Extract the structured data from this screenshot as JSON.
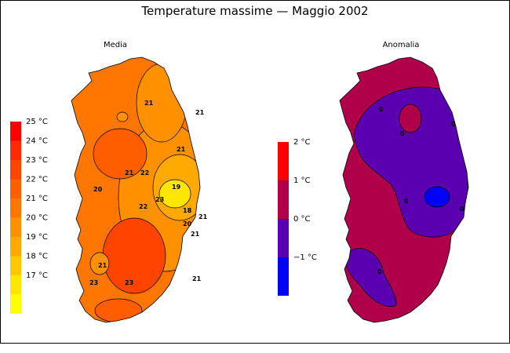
{
  "title": "Temperature massime — Maggio 2002",
  "panels": {
    "left": {
      "label": "Media",
      "legend": [
        {
          "label": "25 °C",
          "color": "#ff0000"
        },
        {
          "label": "24 °C",
          "color": "#ff2a00"
        },
        {
          "label": "23 °C",
          "color": "#ff4400"
        },
        {
          "label": "22 °C",
          "color": "#ff5e00"
        },
        {
          "label": "21 °C",
          "color": "#ff7700"
        },
        {
          "label": "20 °C",
          "color": "#ff9100"
        },
        {
          "label": "19 °C",
          "color": "#ffaa00"
        },
        {
          "label": "18 °C",
          "color": "#ffc800"
        },
        {
          "label": "17 °C",
          "color": "#ffe600"
        },
        {
          "label": "",
          "color": "#ffff00"
        }
      ],
      "contour_labels": [
        "21",
        "21",
        "21",
        "21",
        "22",
        "22",
        "23",
        "19",
        "18",
        "20",
        "21",
        "20",
        "21",
        "21",
        "21",
        "23",
        "23"
      ]
    },
    "right": {
      "label": "Anomalia",
      "legend": [
        {
          "label": "2 °C",
          "color": "#ff0000"
        },
        {
          "label": "1 °C",
          "color": "#b0004a"
        },
        {
          "label": "0 °C",
          "color": "#5a00b0"
        },
        {
          "label": "−1 °C",
          "color": "#0000ff"
        }
      ],
      "contour_labels": [
        "0",
        "0",
        "0",
        "0",
        "0",
        "0"
      ]
    }
  }
}
